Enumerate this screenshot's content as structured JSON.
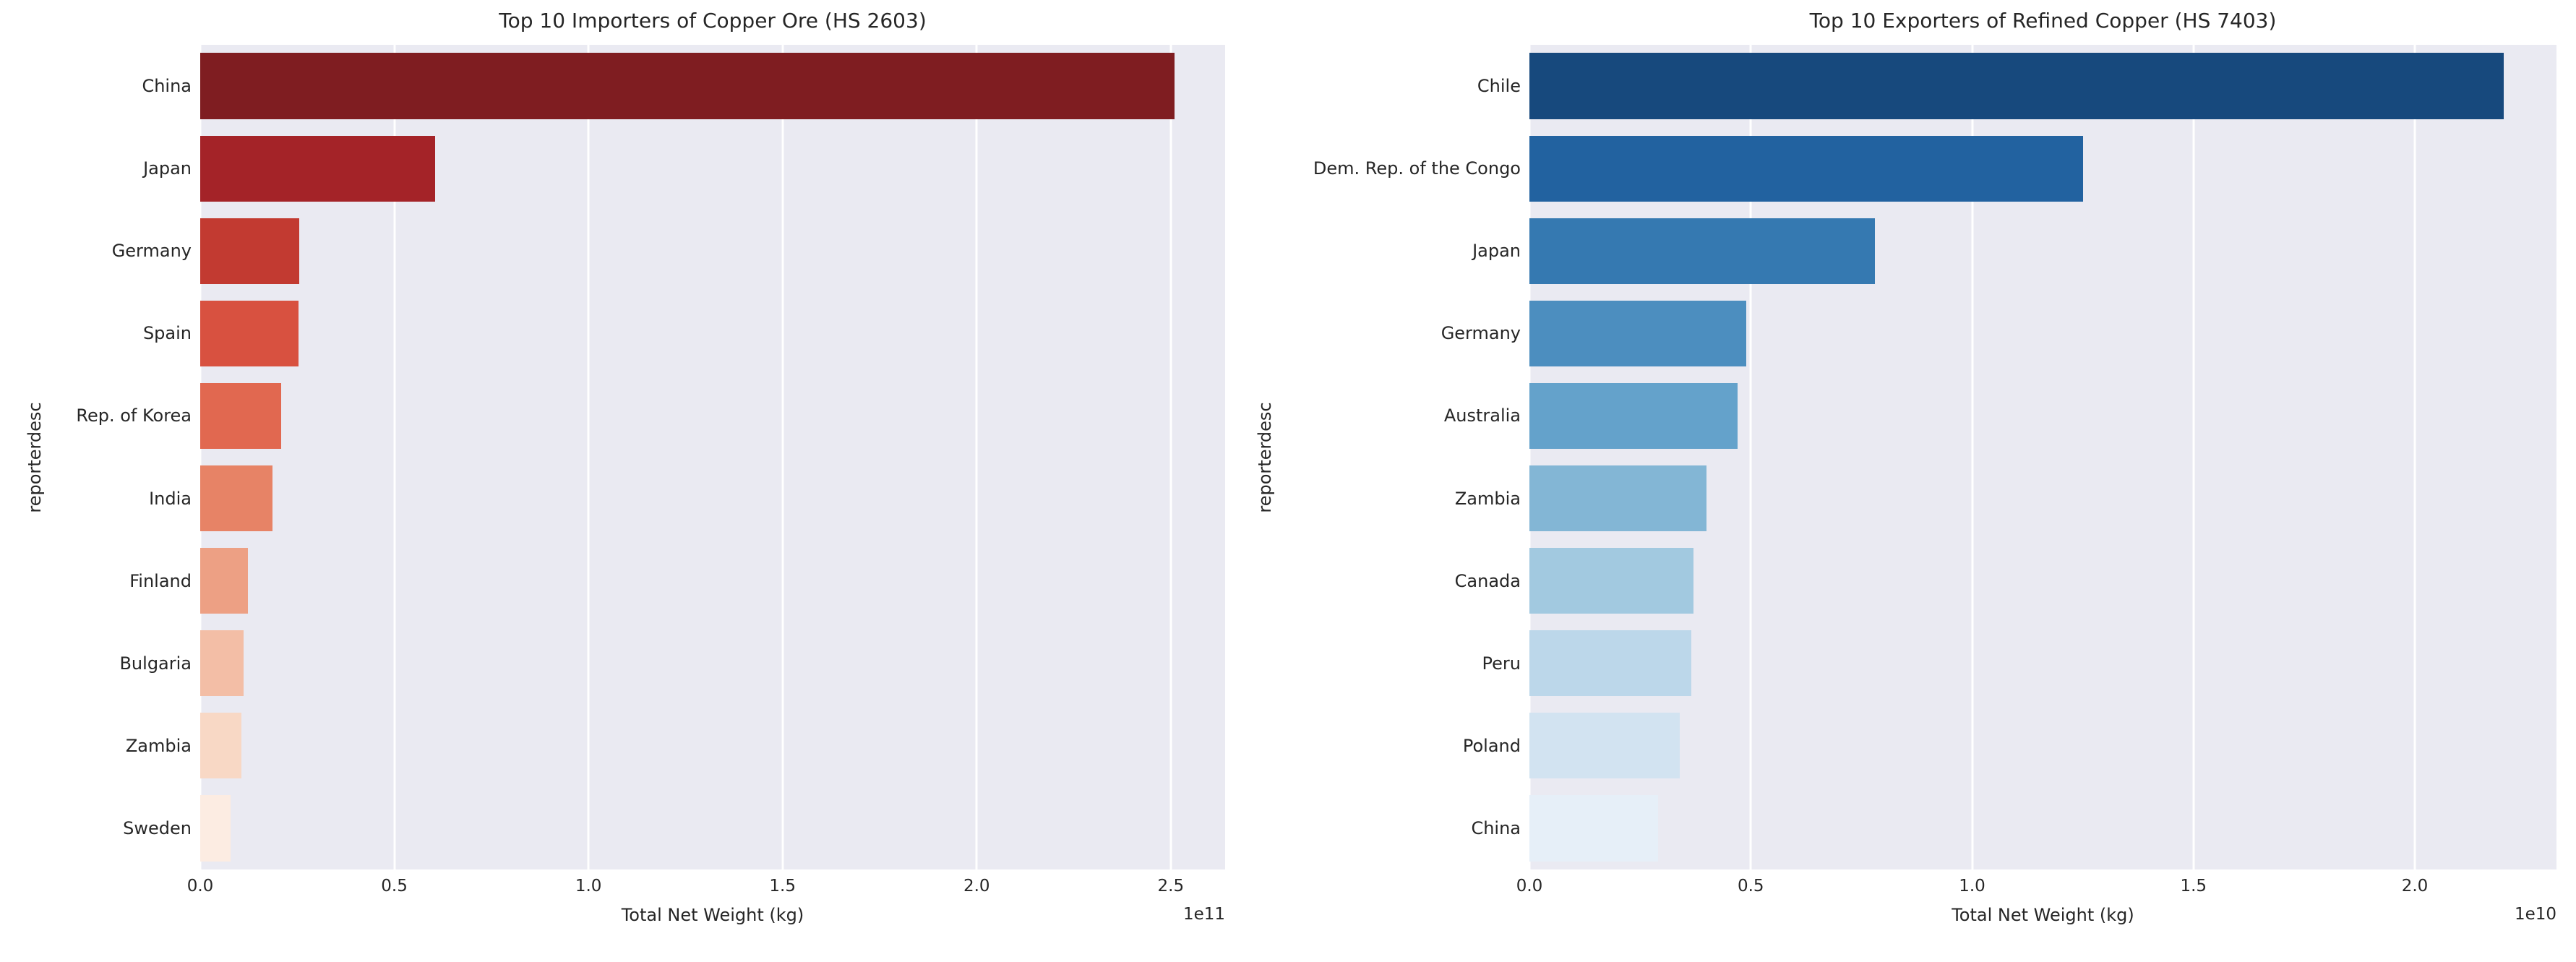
{
  "figure": {
    "background": "#ffffff",
    "plot_background": "#eaeaf2",
    "grid_color": "#ffffff",
    "text_color": "#262626"
  },
  "chart_data": [
    {
      "type": "bar",
      "orientation": "horizontal",
      "title": "Top 10 Importers of Copper Ore (HS 2603)",
      "xlabel": "Total Net Weight (kg)",
      "ylabel": "reporterdesc",
      "offset_text": "1e11",
      "grid": true,
      "legend": false,
      "categories": [
        "China",
        "Japan",
        "Germany",
        "Spain",
        "Rep. of Korea",
        "India",
        "Finland",
        "Bulgaria",
        "Zambia",
        "Sweden"
      ],
      "values": [
        251000000000,
        60500000000,
        25500000000,
        25400000000,
        20800000000,
        18700000000,
        12200000000,
        11200000000,
        10600000000,
        7800000000
      ],
      "bar_colors": [
        "#7f1d21",
        "#a42328",
        "#c23a31",
        "#d85140",
        "#e16850",
        "#e78366",
        "#eda084",
        "#f3bea6",
        "#f8d8c5",
        "#fcece2"
      ],
      "xlim": [
        0,
        264000000000
      ],
      "xticks": [
        0,
        50000000000,
        100000000000,
        150000000000,
        200000000000,
        250000000000
      ],
      "xtick_labels": [
        "0.0",
        "0.5",
        "1.0",
        "1.5",
        "2.0",
        "2.5"
      ]
    },
    {
      "type": "bar",
      "orientation": "horizontal",
      "title": "Top 10 Exporters of Refined Copper (HS 7403)",
      "xlabel": "Total Net Weight (kg)",
      "ylabel": "reporterdesc",
      "offset_text": "1e10",
      "grid": true,
      "legend": false,
      "categories": [
        "Chile",
        "Dem. Rep. of the Congo",
        "Japan",
        "Germany",
        "Australia",
        "Zambia",
        "Canada",
        "Peru",
        "Poland",
        "China"
      ],
      "values": [
        22000000000,
        12500000000,
        7800000000,
        4900000000,
        4700000000,
        4000000000,
        3700000000,
        3650000000,
        3400000000,
        2900000000
      ],
      "bar_colors": [
        "#17497d",
        "#2262a0",
        "#3579b1",
        "#4c8ebf",
        "#64a2cb",
        "#83b6d5",
        "#a2c9e0",
        "#bcd7ea",
        "#d2e3f1",
        "#e6eff8"
      ],
      "xlim": [
        0,
        23200000000
      ],
      "xticks": [
        0,
        5000000000,
        10000000000,
        15000000000,
        20000000000
      ],
      "xtick_labels": [
        "0.0",
        "0.5",
        "1.0",
        "1.5",
        "2.0"
      ]
    }
  ]
}
